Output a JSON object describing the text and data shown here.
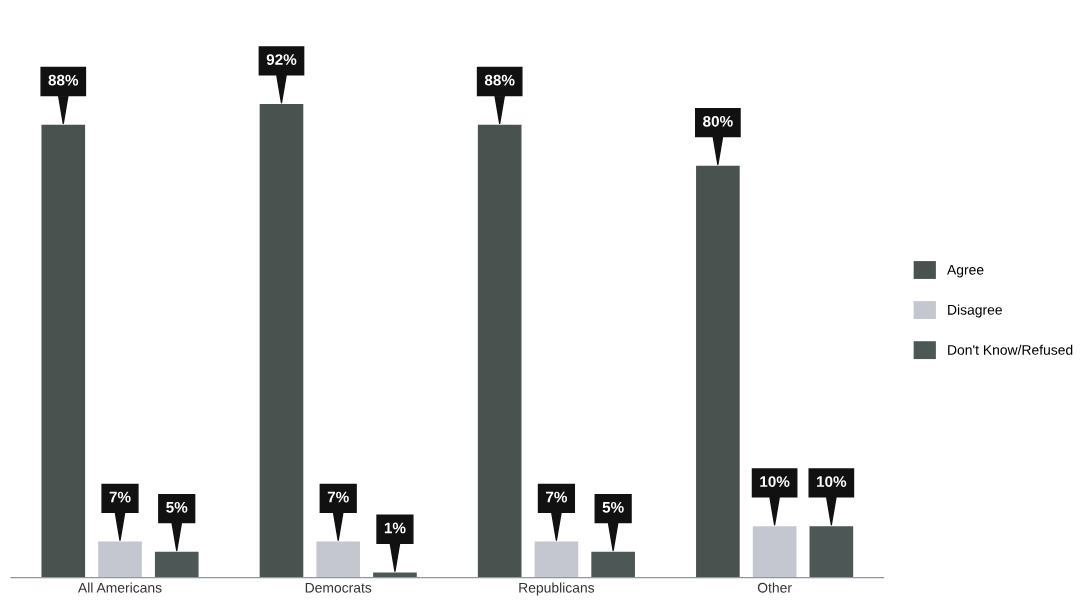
{
  "chart_data": {
    "type": "bar",
    "categories": [
      "All Americans",
      "Democrats",
      "Republicans",
      "Other"
    ],
    "series": [
      {
        "name": "Agree",
        "color": "#4a5250",
        "values": [
          88,
          92,
          88,
          80
        ],
        "value_labels": [
          "88%",
          "92%",
          "88%",
          "80%"
        ]
      },
      {
        "name": "Disagree",
        "color": "#c4c6d0",
        "values": [
          7,
          7,
          7,
          10
        ],
        "value_labels": [
          "7%",
          "7%",
          "7%",
          "10%"
        ]
      },
      {
        "name": "Don't Know/Refused",
        "color": "#4d5756",
        "values": [
          5,
          1,
          5,
          10
        ],
        "value_labels": [
          "5%",
          "1%",
          "5%",
          "10%"
        ]
      }
    ],
    "legend": "right",
    "grid": false
  }
}
